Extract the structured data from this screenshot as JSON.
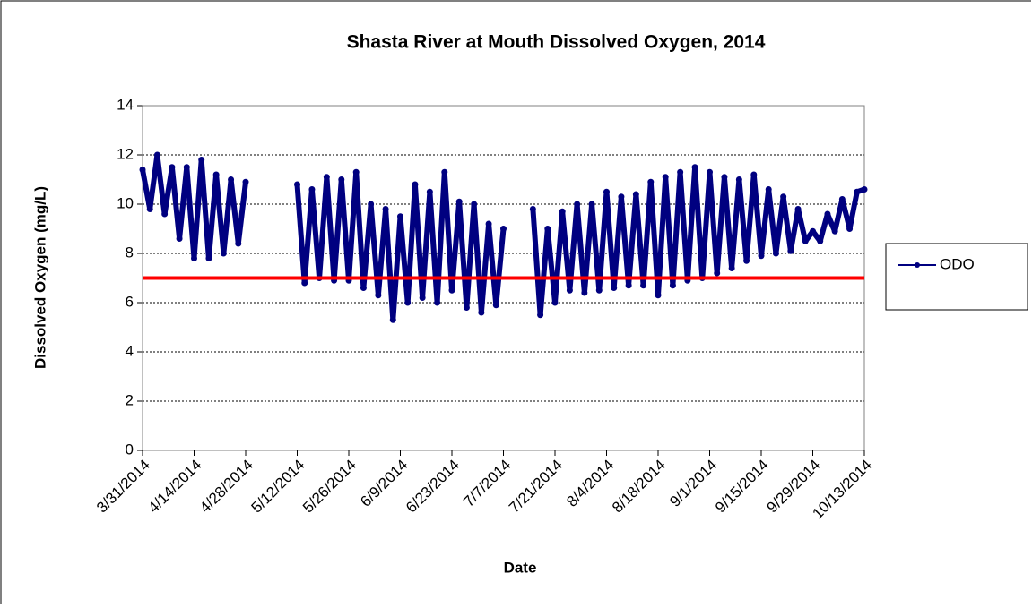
{
  "chart_data": {
    "type": "line",
    "title": "Shasta River at Mouth Dissolved Oxygen, 2014",
    "x_label": "Date",
    "y_label": "Dissolved Oxygen (mg/L)",
    "x": [
      "3/31/2014",
      "4/2/2014",
      "4/4/2014",
      "4/6/2014",
      "4/8/2014",
      "4/10/2014",
      "4/12/2014",
      "4/14/2014",
      "4/16/2014",
      "4/18/2014",
      "4/20/2014",
      "4/22/2014",
      "4/24/2014",
      "4/26/2014",
      "4/28/2014",
      "4/30/2014",
      "5/12/2014",
      "5/14/2014",
      "5/16/2014",
      "5/18/2014",
      "5/20/2014",
      "5/22/2014",
      "5/24/2014",
      "5/26/2014",
      "5/28/2014",
      "5/30/2014",
      "6/1/2014",
      "6/3/2014",
      "6/5/2014",
      "6/7/2014",
      "6/9/2014",
      "6/11/2014",
      "6/13/2014",
      "6/15/2014",
      "6/17/2014",
      "6/19/2014",
      "6/21/2014",
      "6/23/2014",
      "6/25/2014",
      "6/27/2014",
      "6/29/2014",
      "7/1/2014",
      "7/3/2014",
      "7/5/2014",
      "7/7/2014",
      "7/9/2014",
      "7/15/2014",
      "7/17/2014",
      "7/19/2014",
      "7/21/2014",
      "7/23/2014",
      "7/25/2014",
      "7/27/2014",
      "7/29/2014",
      "7/31/2014",
      "8/2/2014",
      "8/4/2014",
      "8/6/2014",
      "8/8/2014",
      "8/10/2014",
      "8/12/2014",
      "8/14/2014",
      "8/16/2014",
      "8/18/2014",
      "8/20/2014",
      "8/22/2014",
      "8/24/2014",
      "8/26/2014",
      "8/28/2014",
      "8/30/2014",
      "9/1/2014",
      "9/3/2014",
      "9/5/2014",
      "9/7/2014",
      "9/9/2014",
      "9/11/2014",
      "9/13/2014",
      "9/15/2014",
      "9/17/2014",
      "9/19/2014",
      "9/21/2014",
      "9/23/2014",
      "9/25/2014",
      "9/27/2014",
      "9/29/2014",
      "10/1/2014",
      "10/3/2014",
      "10/5/2014",
      "10/7/2014",
      "10/9/2014",
      "10/11/2014",
      "10/13/2014"
    ],
    "series": [
      {
        "name": "ODO",
        "color": "#000080",
        "values": [
          11.4,
          9.8,
          12.0,
          9.6,
          11.5,
          8.6,
          11.5,
          7.8,
          11.8,
          7.8,
          11.2,
          8.0,
          11.0,
          8.4,
          10.9,
          null,
          10.8,
          6.8,
          10.6,
          7.0,
          11.1,
          6.9,
          11.0,
          6.9,
          11.3,
          6.6,
          10.0,
          6.3,
          9.8,
          5.3,
          9.5,
          6.0,
          10.8,
          6.2,
          10.5,
          6.0,
          11.3,
          6.5,
          10.1,
          5.8,
          10.0,
          5.6,
          9.2,
          5.9,
          9.0,
          null,
          9.8,
          5.5,
          9.0,
          6.0,
          9.7,
          6.5,
          10.0,
          6.4,
          10.0,
          6.5,
          10.5,
          6.6,
          10.3,
          6.7,
          10.4,
          6.7,
          10.9,
          6.3,
          11.1,
          6.7,
          11.3,
          6.9,
          11.5,
          7.0,
          11.3,
          7.2,
          11.1,
          7.4,
          11.0,
          7.7,
          11.2,
          7.9,
          10.6,
          8.0,
          10.3,
          8.1,
          9.8,
          8.5,
          8.9,
          8.5,
          9.6,
          8.9,
          10.2,
          9.0,
          10.5,
          10.6
        ]
      }
    ],
    "xlim": [
      "3/31/2014",
      "10/13/2014"
    ],
    "xticks": [
      "3/31/2014",
      "4/14/2014",
      "4/28/2014",
      "5/12/2014",
      "5/26/2014",
      "6/9/2014",
      "6/23/2014",
      "7/7/2014",
      "7/21/2014",
      "8/4/2014",
      "8/18/2014",
      "9/1/2014",
      "9/15/2014",
      "9/29/2014",
      "10/13/2014"
    ],
    "ylim": [
      0,
      14
    ],
    "yticks": [
      0,
      2,
      4,
      6,
      8,
      10,
      12,
      14
    ],
    "grid": true,
    "reference_line": {
      "value": 7,
      "color": "#ff0000"
    },
    "legend": "right"
  }
}
